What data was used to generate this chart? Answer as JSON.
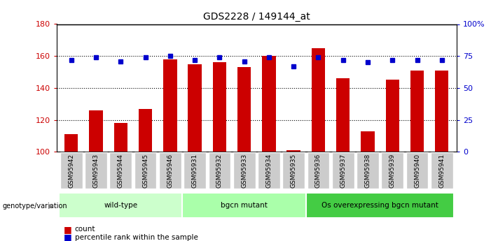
{
  "title": "GDS2228 / 149144_at",
  "samples": [
    "GSM95942",
    "GSM95943",
    "GSM95944",
    "GSM95945",
    "GSM95946",
    "GSM95931",
    "GSM95932",
    "GSM95933",
    "GSM95934",
    "GSM95935",
    "GSM95936",
    "GSM95937",
    "GSM95938",
    "GSM95939",
    "GSM95940",
    "GSM95941"
  ],
  "counts": [
    111,
    126,
    118,
    127,
    158,
    155,
    156,
    153,
    160,
    101,
    165,
    146,
    113,
    145,
    151,
    151
  ],
  "percentiles": [
    72,
    74,
    71,
    74,
    75,
    72,
    74,
    71,
    74,
    67,
    74,
    72,
    70,
    72,
    72,
    72
  ],
  "groups": [
    {
      "label": "wild-type",
      "start": 0,
      "end": 5
    },
    {
      "label": "bgcn mutant",
      "start": 5,
      "end": 10
    },
    {
      "label": "Os overexpressing bgcn mutant",
      "start": 10,
      "end": 16
    }
  ],
  "group_colors": [
    "#ccffcc",
    "#aaffaa",
    "#44cc44"
  ],
  "ylim_left": [
    100,
    180
  ],
  "ylim_right": [
    0,
    100
  ],
  "yticks_left": [
    100,
    120,
    140,
    160,
    180
  ],
  "yticks_right": [
    0,
    25,
    50,
    75,
    100
  ],
  "ytick_right_labels": [
    "0",
    "25",
    "50",
    "75",
    "100%"
  ],
  "bar_color": "#cc0000",
  "dot_color": "#0000cc",
  "bar_width": 0.55,
  "tick_label_bg": "#cccccc",
  "group_label_prefix": "genotype/variation"
}
